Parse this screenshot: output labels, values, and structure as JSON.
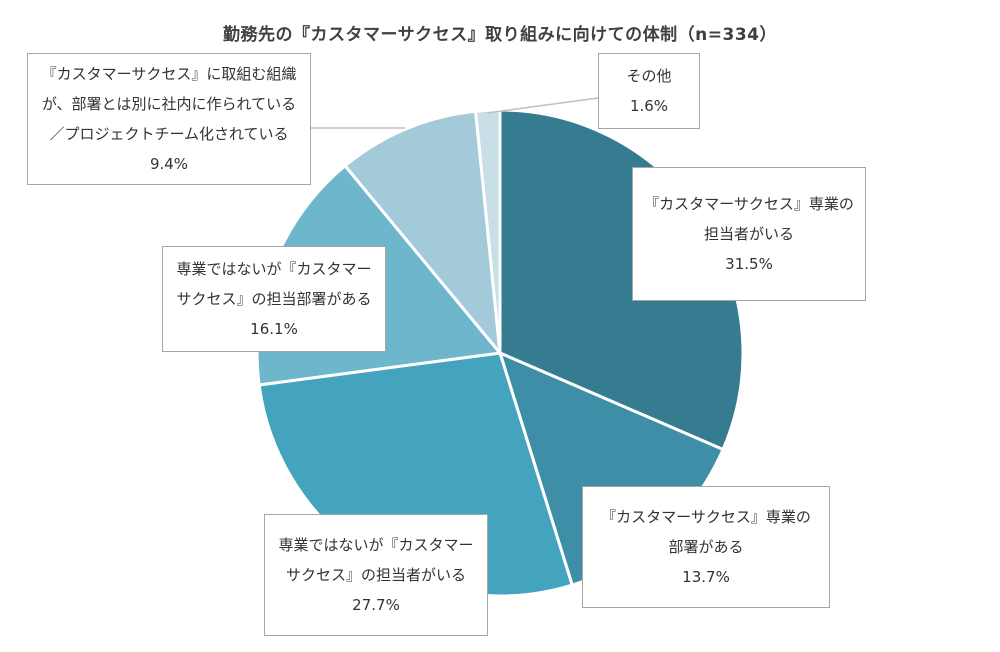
{
  "chart_data": {
    "type": "pie",
    "title": "勤務先の『カスタマーサクセス』取り組みに向けての体制（n=334）",
    "unit": "%",
    "slices": [
      {
        "label_lines": [
          "『カスタマーサクセス』専業の",
          "担当者がいる"
        ],
        "value": 31.5,
        "value_text": "31.5%",
        "color": "#367c91"
      },
      {
        "label_lines": [
          "『カスタマーサクセス』専業の",
          "部署がある"
        ],
        "value": 13.7,
        "value_text": "13.7%",
        "color": "#3d8ea6"
      },
      {
        "label_lines": [
          "専業ではないが『カスタマー",
          "サクセス』の担当者がいる"
        ],
        "value": 27.7,
        "value_text": "27.7%",
        "color": "#44a3bd"
      },
      {
        "label_lines": [
          "専業ではないが『カスタマー",
          "サクセス』の担当部署がある"
        ],
        "value": 16.1,
        "value_text": "16.1%",
        "color": "#6eb6cc"
      },
      {
        "label_lines": [
          "『カスタマーサクセス』に取組む組織",
          "が、部署とは別に社内に作られている",
          "／プロジェクトチーム化されている"
        ],
        "value": 9.4,
        "value_text": "9.4%",
        "color": "#a3cad9"
      },
      {
        "label_lines": [
          "その他"
        ],
        "value": 1.6,
        "value_text": "1.6%",
        "color": "#c9dfe8"
      }
    ]
  }
}
